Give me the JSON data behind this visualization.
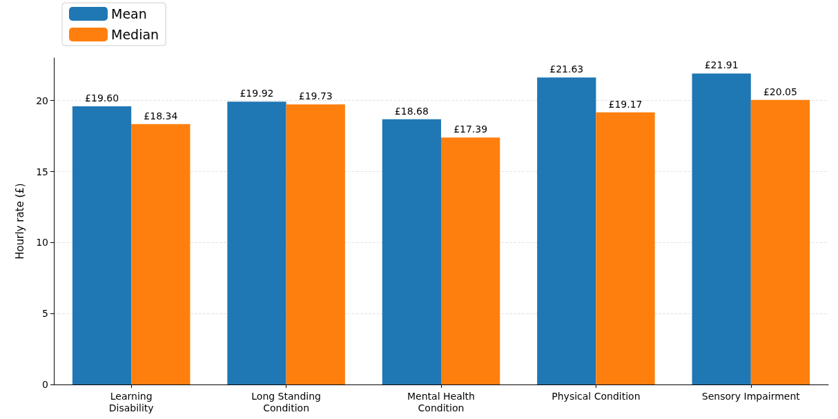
{
  "chart_data": {
    "type": "bar",
    "ylabel": "Hourly rate (£)",
    "categories": [
      "Learning\nDisability",
      "Long Standing\nCondition",
      "Mental Health\nCondition",
      "Physical Condition",
      "Sensory Impairment"
    ],
    "series": [
      {
        "name": "Mean",
        "color": "#1f77b4",
        "values": [
          19.6,
          19.92,
          18.68,
          21.63,
          21.91
        ],
        "value_labels": [
          "£19.60",
          "£19.92",
          "£18.68",
          "£21.63",
          "£21.91"
        ]
      },
      {
        "name": "Median",
        "color": "#ff7f0e",
        "values": [
          18.34,
          19.73,
          17.39,
          19.17,
          20.05
        ],
        "value_labels": [
          "£18.34",
          "£19.73",
          "£17.39",
          "£19.17",
          "£20.05"
        ]
      }
    ],
    "ylim": [
      0,
      23
    ],
    "yticks": [
      0,
      5,
      10,
      15,
      20
    ],
    "grid": "y",
    "legend": "top left"
  }
}
